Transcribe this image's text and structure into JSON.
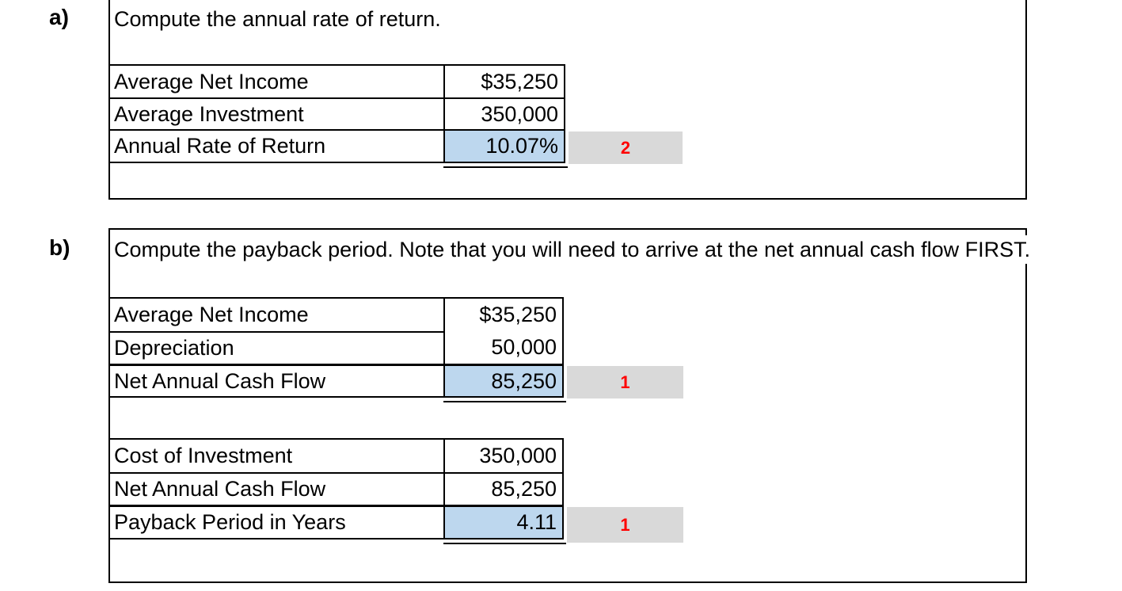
{
  "colors": {
    "highlight_blue": "#BDD7EE",
    "points_gray": "#D9D9D9",
    "points_red": "#FF0000"
  },
  "sections": [
    {
      "label": "a)",
      "title": "Compute the annual rate of return.",
      "tables": [
        {
          "rows": [
            {
              "label": "Average Net Income",
              "value": "$35,250",
              "highlight": false
            },
            {
              "label": "Average Investment",
              "value": "350,000",
              "highlight": false
            },
            {
              "label": "Annual Rate of Return",
              "value": "10.07%",
              "highlight": true,
              "points": "2"
            }
          ]
        }
      ]
    },
    {
      "label": "b)",
      "title": "Compute the payback period. Note that you will need to arrive at the net annual cash flow FIRST.",
      "tables": [
        {
          "rows": [
            {
              "label": "Average Net Income",
              "value": "$35,250",
              "highlight": false
            },
            {
              "label": "Depreciation",
              "value": "50,000",
              "highlight": false
            },
            {
              "label": "Net Annual Cash Flow",
              "value": "85,250",
              "highlight": true,
              "points": "1"
            }
          ]
        },
        {
          "rows": [
            {
              "label": "Cost of Investment",
              "value": "350,000",
              "highlight": false
            },
            {
              "label": "Net Annual Cash Flow",
              "value": "85,250",
              "highlight": false
            },
            {
              "label": "Payback Period in Years",
              "value": "4.11",
              "highlight": true,
              "points": "1"
            }
          ]
        }
      ]
    }
  ]
}
